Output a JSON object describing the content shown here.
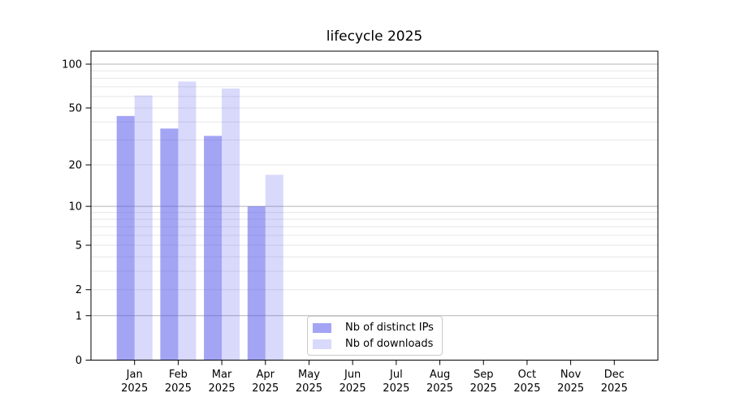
{
  "title": "lifecycle 2025",
  "chart_data": {
    "type": "bar",
    "title": "lifecycle 2025",
    "categories": [
      {
        "month": "Jan",
        "year": "2025"
      },
      {
        "month": "Feb",
        "year": "2025"
      },
      {
        "month": "Mar",
        "year": "2025"
      },
      {
        "month": "Apr",
        "year": "2025"
      },
      {
        "month": "May",
        "year": "2025"
      },
      {
        "month": "Jun",
        "year": "2025"
      },
      {
        "month": "Jul",
        "year": "2025"
      },
      {
        "month": "Aug",
        "year": "2025"
      },
      {
        "month": "Sep",
        "year": "2025"
      },
      {
        "month": "Oct",
        "year": "2025"
      },
      {
        "month": "Nov",
        "year": "2025"
      },
      {
        "month": "Dec",
        "year": "2025"
      }
    ],
    "series": [
      {
        "name": "Nb of distinct IPs",
        "fill": "rgba(80,80,235,0.52)",
        "values": [
          44,
          36,
          32,
          10,
          null,
          null,
          null,
          null,
          null,
          null,
          null,
          null
        ]
      },
      {
        "name": "Nb of downloads",
        "fill": "rgba(80,80,235,0.22)",
        "values": [
          61,
          76,
          68,
          17,
          null,
          null,
          null,
          null,
          null,
          null,
          null,
          null
        ]
      }
    ],
    "y_axis": {
      "scale": "symlog-log1p",
      "tick_labels": [
        0,
        1,
        2,
        5,
        10,
        20,
        50,
        100
      ],
      "major_gridlines": [
        1,
        10,
        100
      ],
      "minor_gridlines": [
        2,
        3,
        4,
        5,
        6,
        7,
        8,
        9,
        20,
        30,
        40,
        50,
        60,
        70,
        80,
        90
      ],
      "ylim": [
        0,
        121
      ]
    },
    "legend": {
      "position": "lower-center-left",
      "items": [
        "Nb of distinct IPs",
        "Nb of downloads"
      ]
    },
    "colors": {
      "bar_base": "#5050eb",
      "major_grid": "#b5b5b5",
      "minor_grid": "#e6e6e6",
      "spine": "#000000",
      "text": "#000000"
    }
  }
}
